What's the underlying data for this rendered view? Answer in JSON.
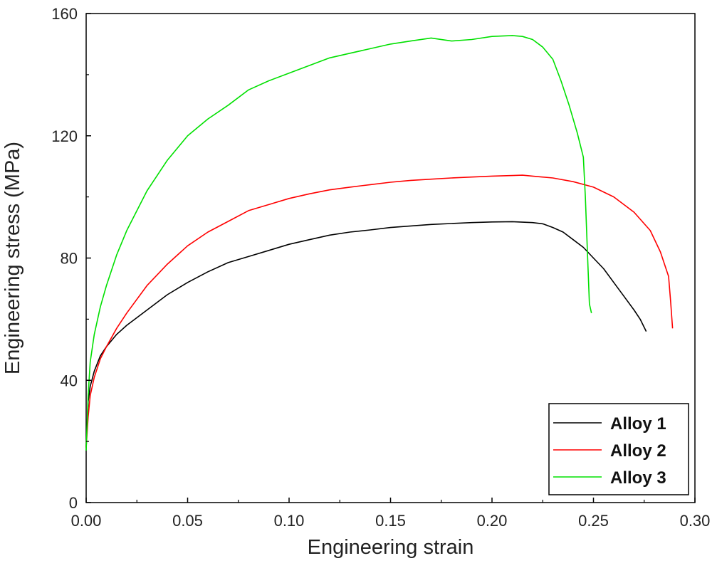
{
  "chart_data": {
    "type": "line",
    "title": "",
    "xlabel": "Engineering strain",
    "ylabel": "Engineering stress (MPa)",
    "xlim": [
      0.0,
      0.3
    ],
    "ylim": [
      0,
      160
    ],
    "x_ticks": [
      "0.00",
      "0.05",
      "0.10",
      "0.15",
      "0.20",
      "0.25",
      "0.30"
    ],
    "y_ticks": [
      "0",
      "40",
      "80",
      "120",
      "160"
    ],
    "grid": false,
    "legend_position": "bottom-right",
    "series": [
      {
        "name": "Alloy 1",
        "color": "#000000",
        "points": [
          [
            0.0,
            18
          ],
          [
            0.001,
            33
          ],
          [
            0.002,
            38
          ],
          [
            0.004,
            43
          ],
          [
            0.007,
            48
          ],
          [
            0.01,
            51
          ],
          [
            0.015,
            55
          ],
          [
            0.02,
            58
          ],
          [
            0.03,
            63
          ],
          [
            0.04,
            68
          ],
          [
            0.05,
            72
          ],
          [
            0.06,
            75.5
          ],
          [
            0.07,
            78.5
          ],
          [
            0.08,
            80.5
          ],
          [
            0.09,
            82.5
          ],
          [
            0.1,
            84.5
          ],
          [
            0.11,
            86
          ],
          [
            0.12,
            87.5
          ],
          [
            0.13,
            88.5
          ],
          [
            0.14,
            89.2
          ],
          [
            0.15,
            90
          ],
          [
            0.16,
            90.5
          ],
          [
            0.17,
            91
          ],
          [
            0.18,
            91.3
          ],
          [
            0.19,
            91.6
          ],
          [
            0.2,
            91.8
          ],
          [
            0.21,
            91.9
          ],
          [
            0.22,
            91.6
          ],
          [
            0.225,
            91.2
          ],
          [
            0.23,
            90
          ],
          [
            0.235,
            88.5
          ],
          [
            0.24,
            86
          ],
          [
            0.245,
            83.5
          ],
          [
            0.25,
            80
          ],
          [
            0.255,
            76.5
          ],
          [
            0.26,
            72
          ],
          [
            0.265,
            67.5
          ],
          [
            0.27,
            63
          ],
          [
            0.273,
            60
          ],
          [
            0.276,
            56
          ]
        ]
      },
      {
        "name": "Alloy 2",
        "color": "#ff0000",
        "points": [
          [
            0.0,
            18
          ],
          [
            0.001,
            28
          ],
          [
            0.002,
            35
          ],
          [
            0.004,
            41
          ],
          [
            0.007,
            47
          ],
          [
            0.01,
            51
          ],
          [
            0.015,
            57
          ],
          [
            0.02,
            62
          ],
          [
            0.03,
            71
          ],
          [
            0.04,
            78
          ],
          [
            0.05,
            84
          ],
          [
            0.06,
            88.5
          ],
          [
            0.07,
            92
          ],
          [
            0.08,
            95.5
          ],
          [
            0.09,
            97.5
          ],
          [
            0.1,
            99.5
          ],
          [
            0.11,
            101
          ],
          [
            0.12,
            102.3
          ],
          [
            0.13,
            103.2
          ],
          [
            0.14,
            104
          ],
          [
            0.15,
            104.8
          ],
          [
            0.16,
            105.4
          ],
          [
            0.17,
            105.8
          ],
          [
            0.18,
            106.2
          ],
          [
            0.19,
            106.5
          ],
          [
            0.2,
            106.8
          ],
          [
            0.21,
            107
          ],
          [
            0.215,
            107.1
          ],
          [
            0.22,
            106.8
          ],
          [
            0.23,
            106.2
          ],
          [
            0.24,
            105
          ],
          [
            0.25,
            103.2
          ],
          [
            0.26,
            100
          ],
          [
            0.27,
            95
          ],
          [
            0.278,
            89
          ],
          [
            0.283,
            82
          ],
          [
            0.287,
            74
          ],
          [
            0.288,
            66
          ],
          [
            0.289,
            57
          ]
        ]
      },
      {
        "name": "Alloy 3",
        "color": "#00e000",
        "points": [
          [
            0.0,
            17
          ],
          [
            0.001,
            35
          ],
          [
            0.002,
            46
          ],
          [
            0.004,
            55
          ],
          [
            0.007,
            64
          ],
          [
            0.01,
            71
          ],
          [
            0.015,
            81
          ],
          [
            0.02,
            89
          ],
          [
            0.03,
            102
          ],
          [
            0.04,
            112
          ],
          [
            0.05,
            120
          ],
          [
            0.06,
            125.5
          ],
          [
            0.07,
            130
          ],
          [
            0.08,
            135
          ],
          [
            0.09,
            138
          ],
          [
            0.1,
            140.5
          ],
          [
            0.11,
            143
          ],
          [
            0.12,
            145.5
          ],
          [
            0.13,
            147
          ],
          [
            0.14,
            148.5
          ],
          [
            0.15,
            150
          ],
          [
            0.16,
            151
          ],
          [
            0.17,
            152
          ],
          [
            0.18,
            151
          ],
          [
            0.19,
            151.5
          ],
          [
            0.2,
            152.5
          ],
          [
            0.21,
            152.8
          ],
          [
            0.215,
            152.5
          ],
          [
            0.22,
            151.5
          ],
          [
            0.225,
            149
          ],
          [
            0.23,
            145
          ],
          [
            0.234,
            138
          ],
          [
            0.238,
            130
          ],
          [
            0.242,
            121
          ],
          [
            0.245,
            113
          ],
          [
            0.246,
            100
          ],
          [
            0.247,
            82
          ],
          [
            0.248,
            65
          ],
          [
            0.249,
            62
          ]
        ]
      }
    ]
  }
}
